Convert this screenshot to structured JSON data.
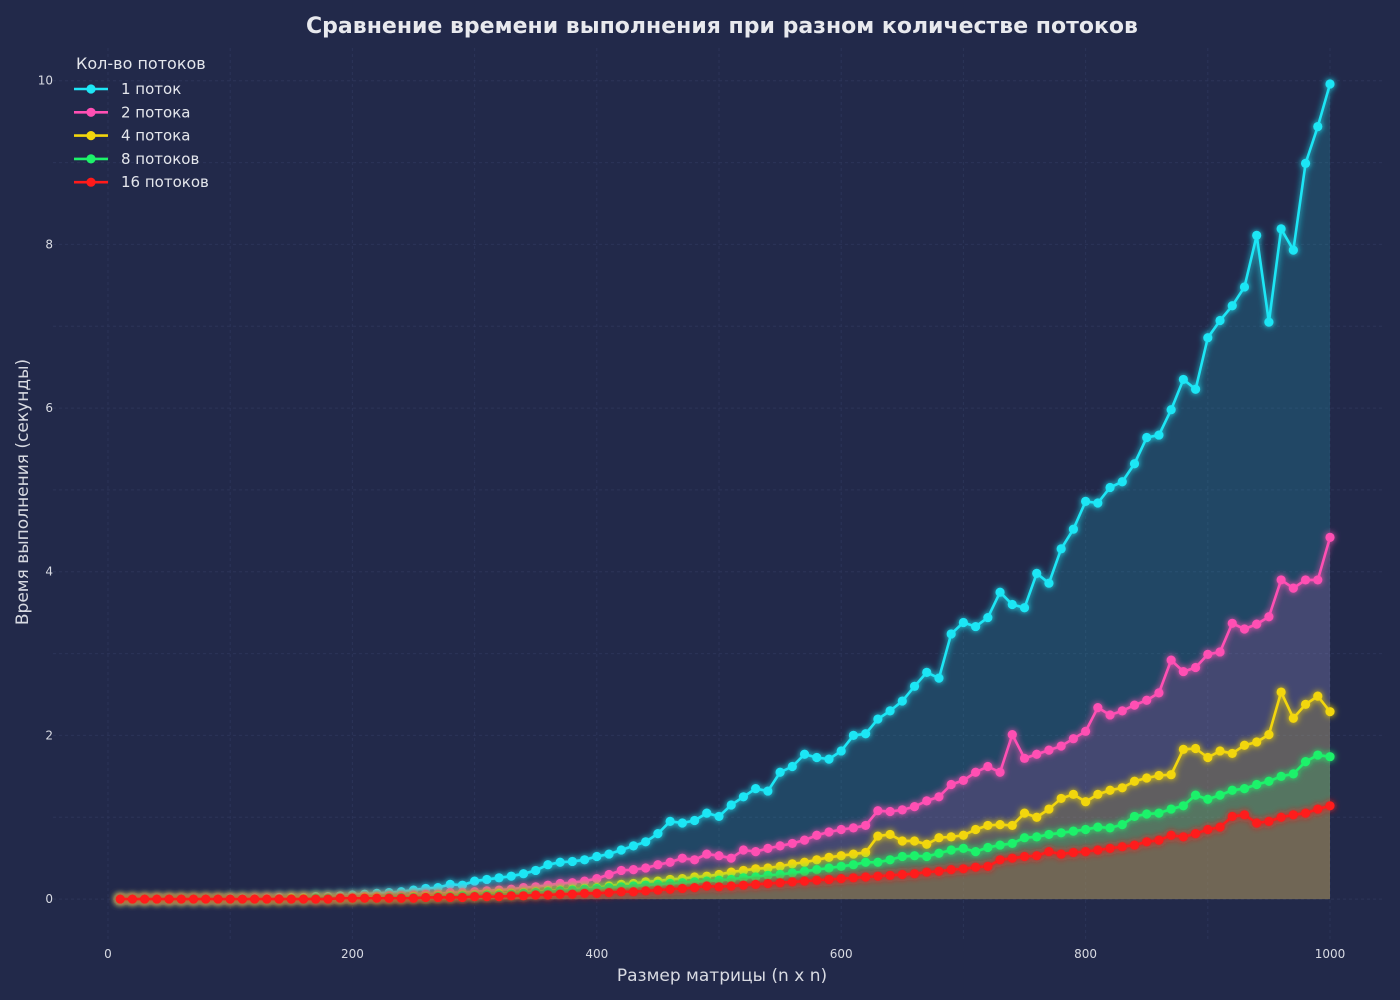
{
  "chart_data": {
    "type": "line",
    "title": "Сравнение времени выполнения при разном количестве потоков",
    "xlabel": "Размер матрицы (n x n)",
    "ylabel": "Время выполнения (секунды)",
    "xlim": [
      -45,
      1045
    ],
    "ylim": [
      -0.5,
      10.4
    ],
    "xticks": [
      0,
      200,
      400,
      600,
      800,
      1000
    ],
    "yticks": [
      0,
      2,
      4,
      6,
      8,
      10
    ],
    "grid": true,
    "legend": {
      "title": "Кол-во потоков",
      "position": "top-left"
    },
    "x": [
      10,
      20,
      30,
      40,
      50,
      60,
      70,
      80,
      90,
      100,
      110,
      120,
      130,
      140,
      150,
      160,
      170,
      180,
      190,
      200,
      210,
      220,
      230,
      240,
      250,
      260,
      270,
      280,
      290,
      300,
      310,
      320,
      330,
      340,
      350,
      360,
      370,
      380,
      390,
      400,
      410,
      420,
      430,
      440,
      450,
      460,
      470,
      480,
      490,
      500,
      510,
      520,
      530,
      540,
      550,
      560,
      570,
      580,
      590,
      600,
      610,
      620,
      630,
      640,
      650,
      660,
      670,
      680,
      690,
      700,
      710,
      720,
      730,
      740,
      750,
      760,
      770,
      780,
      790,
      800,
      810,
      820,
      830,
      840,
      850,
      860,
      870,
      880,
      890,
      900,
      910,
      920,
      930,
      940,
      950,
      960,
      970,
      980,
      990,
      1000
    ],
    "series": [
      {
        "name": "1 поток",
        "color": "#1ee6f5",
        "values": [
          0.0,
          0.0,
          0.0,
          0.0,
          0.0,
          0.0,
          0.0,
          0.0,
          0.0,
          0.01,
          0.01,
          0.01,
          0.01,
          0.02,
          0.02,
          0.02,
          0.03,
          0.03,
          0.04,
          0.05,
          0.06,
          0.07,
          0.08,
          0.09,
          0.11,
          0.13,
          0.14,
          0.18,
          0.17,
          0.22,
          0.24,
          0.26,
          0.28,
          0.31,
          0.35,
          0.42,
          0.45,
          0.46,
          0.48,
          0.52,
          0.55,
          0.6,
          0.65,
          0.7,
          0.8,
          0.95,
          0.93,
          0.96,
          1.05,
          1.01,
          1.15,
          1.25,
          1.35,
          1.32,
          1.55,
          1.62,
          1.77,
          1.73,
          1.71,
          1.81,
          2.0,
          2.02,
          2.2,
          2.3,
          2.42,
          2.6,
          2.77,
          2.7,
          3.24,
          3.38,
          3.33,
          3.44,
          3.75,
          3.6,
          3.56,
          3.98,
          3.86,
          4.28,
          4.52,
          4.86,
          4.84,
          5.03,
          5.1,
          5.32,
          5.64,
          5.67,
          5.98,
          6.35,
          6.23,
          6.86,
          7.07,
          7.25,
          7.48,
          8.11,
          7.05,
          8.19,
          7.93,
          8.99,
          9.44,
          9.96
        ]
      },
      {
        "name": "2 потока",
        "color": "#ff4fb3",
        "values": [
          0.0,
          0.0,
          0.0,
          0.0,
          0.0,
          0.0,
          0.0,
          0.0,
          0.0,
          0.0,
          0.0,
          0.01,
          0.01,
          0.01,
          0.01,
          0.01,
          0.01,
          0.02,
          0.02,
          0.02,
          0.03,
          0.03,
          0.04,
          0.04,
          0.05,
          0.06,
          0.06,
          0.08,
          0.08,
          0.09,
          0.1,
          0.11,
          0.12,
          0.14,
          0.15,
          0.17,
          0.19,
          0.2,
          0.22,
          0.25,
          0.3,
          0.35,
          0.36,
          0.38,
          0.42,
          0.45,
          0.5,
          0.48,
          0.55,
          0.53,
          0.5,
          0.6,
          0.58,
          0.62,
          0.65,
          0.68,
          0.72,
          0.78,
          0.82,
          0.85,
          0.87,
          0.9,
          1.08,
          1.07,
          1.09,
          1.13,
          1.2,
          1.25,
          1.4,
          1.45,
          1.55,
          1.62,
          1.55,
          2.01,
          1.72,
          1.77,
          1.82,
          1.87,
          1.96,
          2.05,
          2.34,
          2.25,
          2.3,
          2.37,
          2.43,
          2.52,
          2.92,
          2.78,
          2.83,
          2.99,
          3.02,
          3.37,
          3.3,
          3.36,
          3.45,
          3.9,
          3.8,
          3.9,
          3.9,
          4.42
        ]
      },
      {
        "name": "4 потока",
        "color": "#f2d60c",
        "values": [
          0.0,
          0.0,
          0.0,
          0.0,
          0.0,
          0.0,
          0.0,
          0.0,
          0.0,
          0.0,
          0.0,
          0.0,
          0.0,
          0.0,
          0.01,
          0.01,
          0.01,
          0.01,
          0.01,
          0.01,
          0.02,
          0.02,
          0.02,
          0.02,
          0.03,
          0.03,
          0.04,
          0.04,
          0.05,
          0.05,
          0.06,
          0.07,
          0.07,
          0.08,
          0.09,
          0.1,
          0.11,
          0.12,
          0.13,
          0.14,
          0.16,
          0.18,
          0.19,
          0.21,
          0.22,
          0.24,
          0.25,
          0.27,
          0.28,
          0.3,
          0.33,
          0.35,
          0.37,
          0.38,
          0.4,
          0.43,
          0.45,
          0.48,
          0.51,
          0.53,
          0.55,
          0.57,
          0.77,
          0.79,
          0.71,
          0.71,
          0.67,
          0.75,
          0.76,
          0.78,
          0.85,
          0.9,
          0.91,
          0.9,
          1.05,
          1.0,
          1.1,
          1.23,
          1.28,
          1.19,
          1.28,
          1.33,
          1.36,
          1.44,
          1.48,
          1.51,
          1.52,
          1.83,
          1.84,
          1.73,
          1.81,
          1.78,
          1.88,
          1.92,
          2.01,
          2.53,
          2.21,
          2.38,
          2.48,
          2.29
        ]
      },
      {
        "name": "8 потоков",
        "color": "#1df26a",
        "values": [
          0.0,
          0.0,
          0.0,
          0.0,
          0.0,
          0.0,
          0.0,
          0.0,
          0.0,
          0.0,
          0.0,
          0.0,
          0.0,
          0.0,
          0.0,
          0.0,
          0.01,
          0.01,
          0.01,
          0.01,
          0.01,
          0.01,
          0.02,
          0.02,
          0.02,
          0.02,
          0.03,
          0.03,
          0.04,
          0.04,
          0.05,
          0.05,
          0.06,
          0.07,
          0.08,
          0.09,
          0.1,
          0.11,
          0.12,
          0.13,
          0.14,
          0.15,
          0.16,
          0.17,
          0.18,
          0.19,
          0.2,
          0.21,
          0.22,
          0.23,
          0.24,
          0.26,
          0.27,
          0.29,
          0.3,
          0.32,
          0.34,
          0.36,
          0.38,
          0.4,
          0.42,
          0.45,
          0.45,
          0.48,
          0.52,
          0.53,
          0.52,
          0.56,
          0.6,
          0.62,
          0.58,
          0.63,
          0.66,
          0.68,
          0.75,
          0.76,
          0.79,
          0.81,
          0.83,
          0.85,
          0.88,
          0.87,
          0.91,
          1.01,
          1.04,
          1.05,
          1.1,
          1.14,
          1.27,
          1.22,
          1.27,
          1.33,
          1.35,
          1.4,
          1.44,
          1.5,
          1.53,
          1.68,
          1.76,
          1.74
        ]
      },
      {
        "name": "16 потоков",
        "color": "#ff1a1a",
        "values": [
          0.0,
          0.0,
          0.0,
          0.0,
          0.0,
          0.0,
          0.0,
          0.0,
          0.0,
          0.0,
          0.0,
          0.0,
          0.0,
          0.0,
          0.0,
          0.0,
          0.0,
          0.0,
          0.01,
          0.01,
          0.01,
          0.01,
          0.01,
          0.01,
          0.01,
          0.02,
          0.02,
          0.02,
          0.02,
          0.03,
          0.03,
          0.03,
          0.04,
          0.04,
          0.05,
          0.05,
          0.06,
          0.06,
          0.07,
          0.07,
          0.08,
          0.09,
          0.09,
          0.1,
          0.11,
          0.12,
          0.13,
          0.14,
          0.16,
          0.15,
          0.16,
          0.17,
          0.18,
          0.19,
          0.2,
          0.21,
          0.22,
          0.23,
          0.24,
          0.25,
          0.26,
          0.27,
          0.28,
          0.29,
          0.3,
          0.31,
          0.33,
          0.34,
          0.36,
          0.37,
          0.39,
          0.4,
          0.48,
          0.5,
          0.52,
          0.53,
          0.58,
          0.55,
          0.57,
          0.58,
          0.6,
          0.62,
          0.64,
          0.66,
          0.7,
          0.72,
          0.78,
          0.76,
          0.8,
          0.85,
          0.88,
          1.01,
          1.03,
          0.93,
          0.95,
          1.0,
          1.03,
          1.05,
          1.1,
          1.14
        ]
      }
    ]
  }
}
